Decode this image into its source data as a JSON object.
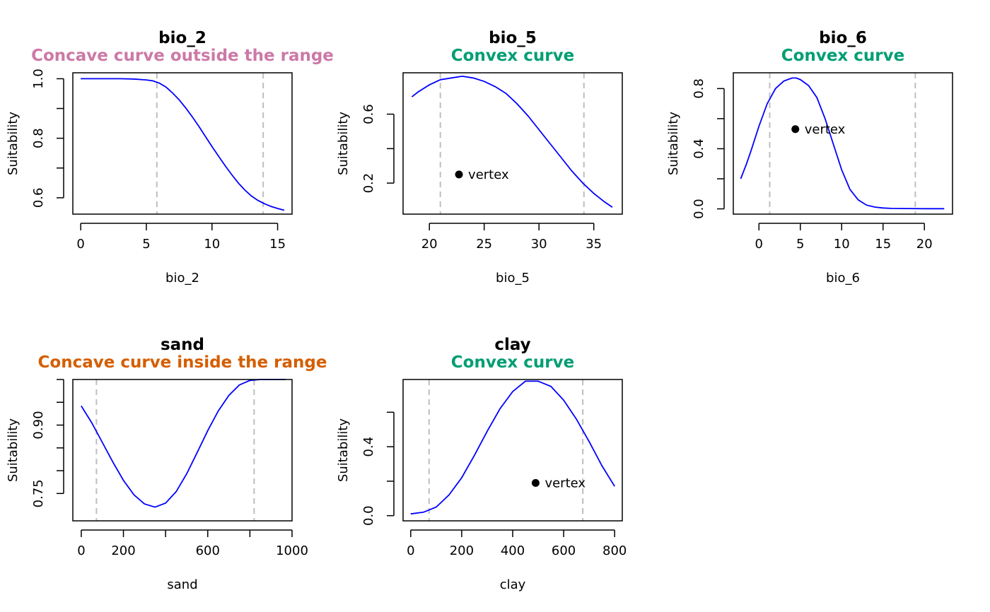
{
  "colors": {
    "curve": "#0000ff",
    "range_line": "#bebebe",
    "outside_range": "#cc79a7",
    "convex": "#009e73",
    "inside_range": "#d55e00"
  },
  "chart_data": [
    {
      "type": "line",
      "title": "bio_2",
      "subtitle": "Concave curve outside the range",
      "subtitle_color": "#cc79a7",
      "xlabel": "bio_2",
      "ylabel": "Suitability",
      "xlim": [
        -0.6,
        16.1
      ],
      "ylim": [
        0.545,
        1.02
      ],
      "xticks": [
        0,
        5,
        10,
        15
      ],
      "xtick_labels": [
        "0",
        "5",
        "10",
        "15"
      ],
      "yticks": [
        0.6,
        0.7,
        0.8,
        0.9,
        1.0
      ],
      "ytick_labels": [
        "0.6",
        "",
        "0.8",
        "",
        "1.0"
      ],
      "range_lines": [
        5.8,
        13.9
      ],
      "vertex": null,
      "x": [
        0,
        1,
        2,
        3,
        4,
        5,
        5.5,
        6,
        6.5,
        7,
        7.5,
        8,
        8.5,
        9,
        9.5,
        10,
        10.5,
        11,
        11.5,
        12,
        12.5,
        13,
        13.5,
        14,
        14.5,
        15,
        15.5
      ],
      "y": [
        1.0,
        1.0,
        1.0,
        1.0,
        0.999,
        0.996,
        0.993,
        0.985,
        0.972,
        0.952,
        0.929,
        0.902,
        0.872,
        0.84,
        0.806,
        0.772,
        0.74,
        0.708,
        0.678,
        0.65,
        0.626,
        0.606,
        0.591,
        0.58,
        0.571,
        0.564,
        0.558
      ]
    },
    {
      "type": "line",
      "title": "bio_5",
      "subtitle": "Convex curve",
      "subtitle_color": "#009e73",
      "xlabel": "bio_5",
      "ylabel": "Suitability",
      "xlim": [
        17.6,
        37.6
      ],
      "ylim": [
        0.02,
        0.84
      ],
      "xticks": [
        20,
        25,
        30,
        35
      ],
      "xtick_labels": [
        "20",
        "25",
        "30",
        "35"
      ],
      "yticks": [
        0.2,
        0.4,
        0.6
      ],
      "ytick_labels": [
        "0.2",
        "",
        "0.6"
      ],
      "range_lines": [
        21.0,
        34.1
      ],
      "vertex": {
        "x": 22.7,
        "y": 0.25,
        "label": "vertex"
      },
      "x": [
        18.4,
        19,
        20,
        21,
        22,
        23,
        24,
        25,
        26,
        27,
        28,
        29,
        30,
        31,
        32,
        33,
        34,
        35,
        36,
        36.7
      ],
      "y": [
        0.7,
        0.73,
        0.77,
        0.8,
        0.81,
        0.82,
        0.81,
        0.79,
        0.76,
        0.72,
        0.66,
        0.59,
        0.51,
        0.43,
        0.35,
        0.27,
        0.2,
        0.14,
        0.09,
        0.06
      ]
    },
    {
      "type": "line",
      "title": "bio_6",
      "subtitle": "Convex curve",
      "subtitle_color": "#009e73",
      "xlabel": "bio_6",
      "ylabel": "Suitability",
      "xlim": [
        -3.1,
        23.4
      ],
      "ylim": [
        -0.035,
        0.905
      ],
      "xticks": [
        0,
        5,
        10,
        15,
        20
      ],
      "xtick_labels": [
        "0",
        "5",
        "10",
        "15",
        "20"
      ],
      "yticks": [
        0.0,
        0.2,
        0.4,
        0.6,
        0.8
      ],
      "ytick_labels": [
        "0.0",
        "",
        "0.4",
        "",
        "0.8"
      ],
      "range_lines": [
        1.3,
        18.9
      ],
      "vertex": {
        "x": 4.4,
        "y": 0.53,
        "label": "vertex"
      },
      "x": [
        -2.2,
        -1.5,
        -1,
        0,
        1,
        2,
        3,
        4,
        4.5,
        5,
        6,
        7,
        8,
        9,
        10,
        11,
        12,
        13,
        14,
        15,
        16,
        18,
        20,
        22.4
      ],
      "y": [
        0.2,
        0.3,
        0.38,
        0.55,
        0.7,
        0.8,
        0.85,
        0.87,
        0.87,
        0.86,
        0.82,
        0.74,
        0.6,
        0.43,
        0.26,
        0.13,
        0.06,
        0.025,
        0.012,
        0.006,
        0.003,
        0.002,
        0.001,
        0.001
      ]
    },
    {
      "type": "line",
      "title": "sand",
      "subtitle": "Concave curve inside the range",
      "subtitle_color": "#d55e00",
      "xlabel": "sand",
      "ylabel": "Suitability",
      "xlim": [
        -40,
        1000
      ],
      "ylim": [
        0.69,
        1.0
      ],
      "xticks": [
        0,
        200,
        400,
        600,
        800,
        1000
      ],
      "xtick_labels": [
        "0",
        "200",
        "",
        "600",
        "",
        "1000"
      ],
      "yticks": [
        0.75,
        0.8,
        0.85,
        0.9,
        0.95,
        1.0
      ],
      "ytick_labels": [
        "0.75",
        "",
        "",
        "0.90",
        "",
        ""
      ],
      "range_lines": [
        72,
        820
      ],
      "vertex": null,
      "x": [
        0,
        50,
        100,
        150,
        200,
        250,
        300,
        350,
        400,
        450,
        500,
        550,
        600,
        650,
        700,
        750,
        800,
        850,
        900,
        970
      ],
      "y": [
        0.942,
        0.905,
        0.862,
        0.819,
        0.779,
        0.747,
        0.727,
        0.72,
        0.729,
        0.754,
        0.793,
        0.84,
        0.888,
        0.931,
        0.965,
        0.988,
        0.998,
        1.0,
        1.0,
        1.0
      ]
    },
    {
      "type": "line",
      "title": "clay",
      "subtitle": "Convex curve",
      "subtitle_color": "#009e73",
      "xlabel": "clay",
      "ylabel": "Suitability",
      "xlim": [
        -30,
        830
      ],
      "ylim": [
        -0.03,
        0.79
      ],
      "xticks": [
        0,
        200,
        400,
        600,
        800
      ],
      "xtick_labels": [
        "0",
        "200",
        "400",
        "600",
        "800"
      ],
      "yticks": [
        0.0,
        0.2,
        0.4,
        0.6
      ],
      "ytick_labels": [
        "0.0",
        "",
        "0.4",
        ""
      ],
      "range_lines": [
        72,
        675
      ],
      "vertex": {
        "x": 490,
        "y": 0.19,
        "label": "vertex"
      },
      "x": [
        0,
        50,
        100,
        150,
        200,
        250,
        300,
        350,
        400,
        450,
        500,
        550,
        600,
        650,
        700,
        750,
        800
      ],
      "y": [
        0.01,
        0.02,
        0.05,
        0.12,
        0.22,
        0.35,
        0.49,
        0.62,
        0.72,
        0.78,
        0.78,
        0.75,
        0.67,
        0.56,
        0.43,
        0.29,
        0.17
      ]
    }
  ]
}
